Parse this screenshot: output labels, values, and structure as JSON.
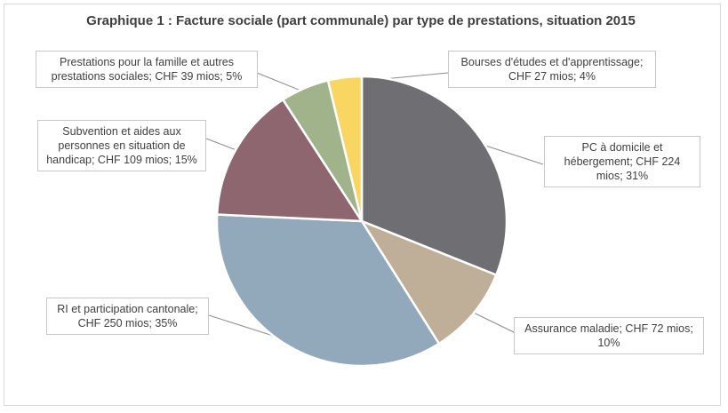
{
  "chart_data": {
    "type": "pie",
    "title": "Graphique 1 : Facture sociale (part communale)  par type de prestations,  situation 2015",
    "start_angle_deg": 0,
    "slices": [
      {
        "label": "PC à domicile et hébergement; CHF 224 mios; 31%",
        "value": 224,
        "percent": 31,
        "color": "#6f6e73"
      },
      {
        "label": "Assurance maladie; CHF 72 mios; 10%",
        "value": 72,
        "percent": 10,
        "color": "#bfae98"
      },
      {
        "label": "RI et participation cantonale; CHF 250 mios; 35%",
        "value": 250,
        "percent": 35,
        "color": "#91a9ba"
      },
      {
        "label": "Subvention et aides aux personnes en situation de handicap; CHF 109 mios; 15%",
        "value": 109,
        "percent": 15,
        "color": "#8d666f"
      },
      {
        "label": "Prestations pour la famille et autres prestations sociales; CHF 39 mios; 5%",
        "value": 39,
        "percent": 5,
        "color": "#a1b38a"
      },
      {
        "label": "Bourses d'études et d'apprentissage; CHF 27 mios; 4%",
        "value": 27,
        "percent": 4,
        "color": "#f9d662"
      }
    ]
  }
}
